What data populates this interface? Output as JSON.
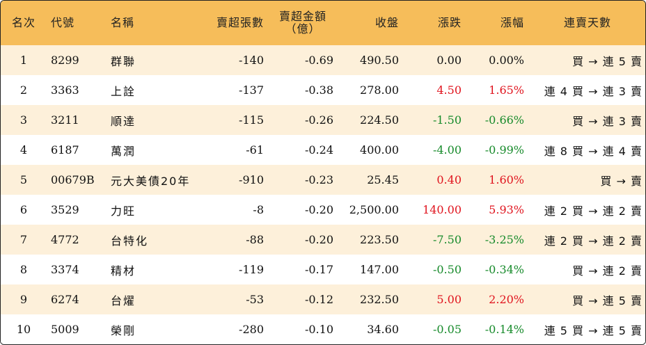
{
  "headers": {
    "rank": "名次",
    "code": "代號",
    "name": "名稱",
    "sell_shares": "賣超張數",
    "sell_amount_line1": "賣超金額",
    "sell_amount_line2": "（億）",
    "close": "收盤",
    "change": "漲跌",
    "pct": "漲幅",
    "days": "連賣天數"
  },
  "rows": [
    {
      "rank": "1",
      "code": "8299",
      "name": "群聯",
      "sell_shares": "-140",
      "sell_amount": "-0.69",
      "close": "490.50",
      "change": "0.00",
      "pct": "0.00%",
      "dir": "flat",
      "days": "買 → 連 5 賣"
    },
    {
      "rank": "2",
      "code": "3363",
      "name": "上詮",
      "sell_shares": "-137",
      "sell_amount": "-0.38",
      "close": "278.00",
      "change": "4.50",
      "pct": "1.65%",
      "dir": "up",
      "days": "連 4 買 → 連 3 賣"
    },
    {
      "rank": "3",
      "code": "3211",
      "name": "順達",
      "sell_shares": "-115",
      "sell_amount": "-0.26",
      "close": "224.50",
      "change": "-1.50",
      "pct": "-0.66%",
      "dir": "down",
      "days": "買 → 連 3 賣"
    },
    {
      "rank": "4",
      "code": "6187",
      "name": "萬潤",
      "sell_shares": "-61",
      "sell_amount": "-0.24",
      "close": "400.00",
      "change": "-4.00",
      "pct": "-0.99%",
      "dir": "down",
      "days": "連 8 買 → 連 4 賣"
    },
    {
      "rank": "5",
      "code": "00679B",
      "name": "元大美債20年",
      "sell_shares": "-910",
      "sell_amount": "-0.23",
      "close": "25.45",
      "change": "0.40",
      "pct": "1.60%",
      "dir": "up",
      "days": "買 → 賣"
    },
    {
      "rank": "6",
      "code": "3529",
      "name": "力旺",
      "sell_shares": "-8",
      "sell_amount": "-0.20",
      "close": "2,500.00",
      "change": "140.00",
      "pct": "5.93%",
      "dir": "up",
      "days": "連 2 買 → 連 2 賣"
    },
    {
      "rank": "7",
      "code": "4772",
      "name": "台特化",
      "sell_shares": "-88",
      "sell_amount": "-0.20",
      "close": "223.50",
      "change": "-7.50",
      "pct": "-3.25%",
      "dir": "down",
      "days": "連 2 買 → 連 2 賣"
    },
    {
      "rank": "8",
      "code": "3374",
      "name": "精材",
      "sell_shares": "-119",
      "sell_amount": "-0.17",
      "close": "147.00",
      "change": "-0.50",
      "pct": "-0.34%",
      "dir": "down",
      "days": "買 → 連 2 賣"
    },
    {
      "rank": "9",
      "code": "6274",
      "name": "台燿",
      "sell_shares": "-53",
      "sell_amount": "-0.12",
      "close": "232.50",
      "change": "5.00",
      "pct": "2.20%",
      "dir": "up",
      "days": "買 → 連 5 賣"
    },
    {
      "rank": "10",
      "code": "5009",
      "name": "榮剛",
      "sell_shares": "-280",
      "sell_amount": "-0.10",
      "close": "34.60",
      "change": "-0.05",
      "pct": "-0.14%",
      "dir": "down",
      "days": "連 5 買 → 連 5 賣"
    }
  ],
  "colors": {
    "header_bg": "#f6bd5a",
    "stripe_bg": "#fdf0da",
    "up": "#e0141e",
    "down": "#168a2a"
  }
}
